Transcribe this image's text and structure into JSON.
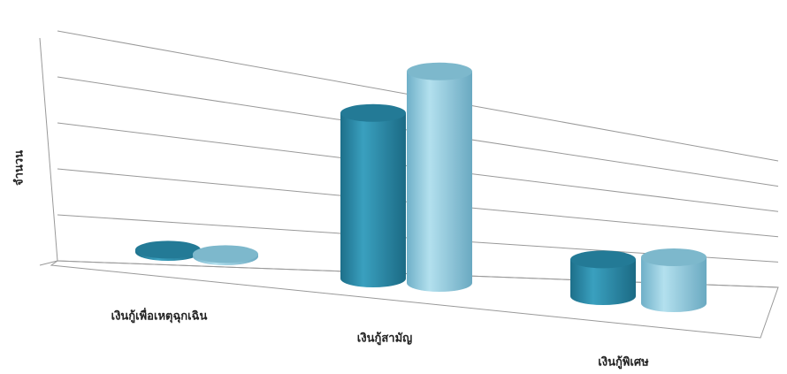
{
  "chart_data": {
    "type": "cylinder3d",
    "y_label": "จำนวน",
    "categories": [
      "เงินกู้เพื่อเหตุฉุกเฉิน",
      "เงินกู้สามัญ",
      "เงินกู้พิเศษ"
    ],
    "series": [
      {
        "color": "#2a88a6",
        "values": [
          0.05,
          3.6,
          0.8
        ]
      },
      {
        "color": "#8ac6dc",
        "values": [
          0.05,
          4.6,
          1.0
        ]
      }
    ],
    "ylim": [
      0,
      5
    ],
    "yticks": [
      0,
      1,
      2,
      3,
      4,
      5
    ],
    "grid": true
  }
}
